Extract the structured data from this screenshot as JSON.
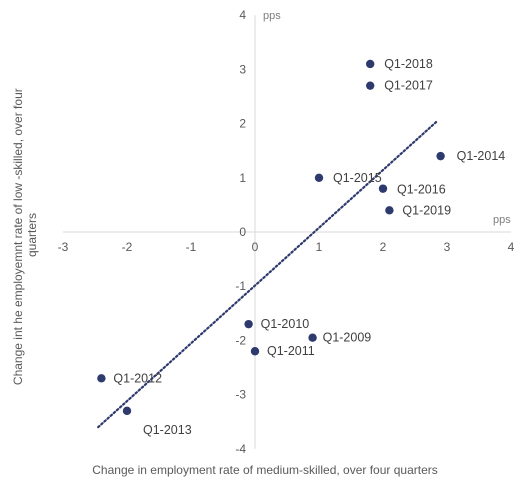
{
  "chart_data": {
    "type": "scatter",
    "title": "",
    "xlabel": "Change in employment rate of medium-skilled, over four quarters",
    "ylabel_lines": [
      "Change int he employemnt rate of low -skilled, over four",
      "quarters"
    ],
    "x_unit": "pps",
    "y_unit": "pps",
    "xlim": [
      -3,
      4
    ],
    "ylim": [
      -4,
      4
    ],
    "x_ticks": [
      "-3",
      "-2",
      "-1",
      "0",
      "1",
      "2",
      "3",
      "4"
    ],
    "y_ticks": [
      "4",
      "3",
      "2",
      "1",
      "0",
      "-1",
      "-2",
      "-3",
      "-4"
    ],
    "point_color": "#2e3a6e",
    "trendline": {
      "style": "dotted",
      "color": "#2e3a6e",
      "x_start": -2.45,
      "y_start": -3.6,
      "x_end": 2.85,
      "y_end": 2.05
    },
    "points": [
      {
        "label": "Q1-2009",
        "x": 0.9,
        "y": -1.95
      },
      {
        "label": "Q1-2010",
        "x": -0.1,
        "y": -1.7
      },
      {
        "label": "Q1-2011",
        "x": 0.0,
        "y": -2.2
      },
      {
        "label": "Q1-2012",
        "x": -2.4,
        "y": -2.7
      },
      {
        "label": "Q1-2013",
        "x": -2.0,
        "y": -3.3
      },
      {
        "label": "Q1-2014",
        "x": 2.9,
        "y": 1.4
      },
      {
        "label": "Q1-2015",
        "x": 1.0,
        "y": 1.0
      },
      {
        "label": "Q1-2016",
        "x": 2.0,
        "y": 0.8
      },
      {
        "label": "Q1-2017",
        "x": 1.8,
        "y": 2.7
      },
      {
        "label": "Q1-2018",
        "x": 1.8,
        "y": 3.1
      },
      {
        "label": "Q1-2019",
        "x": 2.1,
        "y": 0.4
      }
    ]
  }
}
